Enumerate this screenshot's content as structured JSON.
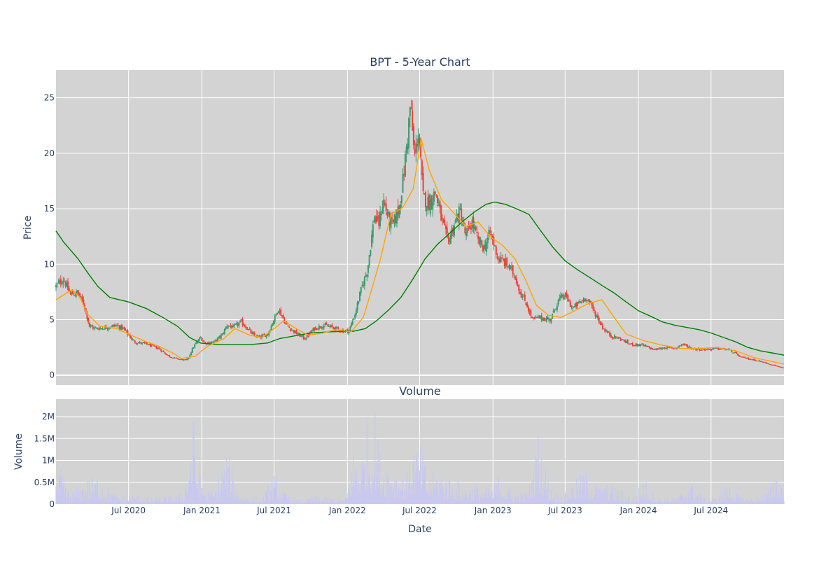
{
  "chart_data": [
    {
      "type": "candlestick",
      "title": "BPT - 5-Year Chart",
      "ylabel": "Price",
      "xlabel": "",
      "ylim": [
        -0.9,
        27.5
      ],
      "xlim": [
        "2020-01-01",
        "2024-12-31"
      ],
      "y_ticks": [
        0,
        5,
        10,
        15,
        20,
        25
      ],
      "grid": true,
      "legend": "none",
      "colors": {
        "up": "#3d9970",
        "down": "#ef4136",
        "ma_short": "#ffa500",
        "ma_long": "#008000",
        "background": "#d3d3d3"
      },
      "close_series": {
        "dates": [
          "2020-01-01",
          "2020-01-20",
          "2020-02-05",
          "2020-02-25",
          "2020-03-12",
          "2020-03-25",
          "2020-04-10",
          "2020-05-05",
          "2020-06-01",
          "2020-06-20",
          "2020-07-15",
          "2020-08-15",
          "2020-09-15",
          "2020-10-10",
          "2020-10-28",
          "2020-11-10",
          "2020-11-25",
          "2020-12-10",
          "2020-12-28",
          "2021-01-10",
          "2021-02-01",
          "2021-02-20",
          "2021-03-05",
          "2021-03-20",
          "2021-04-10",
          "2021-05-10",
          "2021-05-25",
          "2021-06-15",
          "2021-06-28",
          "2021-07-12",
          "2021-08-01",
          "2021-08-25",
          "2021-09-15",
          "2021-10-10",
          "2021-11-01",
          "2021-11-25",
          "2021-12-20",
          "2022-01-05",
          "2022-01-20",
          "2022-02-05",
          "2022-02-20",
          "2022-03-01",
          "2022-03-10",
          "2022-03-20",
          "2022-04-01",
          "2022-04-15",
          "2022-04-25",
          "2022-05-10",
          "2022-05-20",
          "2022-06-01",
          "2022-06-08",
          "2022-06-18",
          "2022-06-28",
          "2022-07-10",
          "2022-07-25",
          "2022-08-10",
          "2022-08-25",
          "2022-09-10",
          "2022-09-25",
          "2022-10-10",
          "2022-10-25",
          "2022-11-10",
          "2022-11-25",
          "2022-12-10",
          "2022-12-25",
          "2023-01-15",
          "2023-02-05",
          "2023-02-25",
          "2023-03-10",
          "2023-03-25",
          "2023-04-10",
          "2023-04-25",
          "2023-05-10",
          "2023-05-25",
          "2023-06-15",
          "2023-07-01",
          "2023-07-20",
          "2023-08-05",
          "2023-08-25",
          "2023-09-15",
          "2023-10-05",
          "2023-10-25",
          "2023-11-15",
          "2023-12-10",
          "2024-01-10",
          "2024-02-10",
          "2024-03-10",
          "2024-04-01",
          "2024-04-20",
          "2024-05-15",
          "2024-06-15",
          "2024-07-15",
          "2024-08-15",
          "2024-09-15",
          "2024-10-15",
          "2024-11-15",
          "2024-12-15",
          "2024-12-31"
        ],
        "close": [
          8.0,
          8.7,
          7.3,
          7.4,
          6.3,
          4.4,
          4.2,
          4.3,
          4.5,
          4.1,
          3.0,
          2.8,
          2.4,
          1.7,
          1.5,
          1.4,
          1.35,
          2.5,
          3.4,
          2.9,
          3.0,
          3.6,
          4.5,
          4.3,
          4.8,
          3.6,
          3.4,
          3.7,
          4.8,
          6.0,
          4.5,
          3.8,
          3.3,
          4.2,
          4.5,
          4.3,
          4.0,
          4.0,
          5.5,
          7.8,
          9.5,
          12.0,
          14.5,
          13.5,
          15.8,
          14.0,
          13.5,
          15.0,
          17.5,
          21.5,
          24.5,
          19.5,
          22.0,
          16.0,
          15.5,
          16.5,
          14.0,
          12.0,
          13.5,
          14.8,
          12.5,
          13.8,
          12.0,
          11.5,
          12.8,
          10.5,
          10.0,
          9.0,
          7.5,
          6.5,
          5.0,
          5.2,
          5.1,
          5.0,
          6.8,
          7.2,
          6.0,
          6.5,
          7.0,
          5.5,
          4.2,
          3.5,
          3.3,
          2.8,
          2.7,
          2.3,
          2.5,
          2.4,
          2.8,
          2.4,
          2.3,
          2.4,
          2.3,
          1.6,
          1.4,
          1.1,
          0.8,
          0.6
        ]
      },
      "ma_short": {
        "dates": [
          "2020-01-01",
          "2020-02-10",
          "2020-03-01",
          "2020-03-20",
          "2020-04-20",
          "2020-06-01",
          "2020-07-01",
          "2020-08-15",
          "2020-09-15",
          "2020-10-25",
          "2020-11-10",
          "2020-12-15",
          "2021-01-15",
          "2021-02-25",
          "2021-03-25",
          "2021-05-01",
          "2021-06-01",
          "2021-07-05",
          "2021-07-25",
          "2021-08-25",
          "2021-09-25",
          "2021-11-01",
          "2021-12-01",
          "2022-01-10",
          "2022-02-10",
          "2022-03-01",
          "2022-03-25",
          "2022-04-20",
          "2022-05-20",
          "2022-06-15",
          "2022-07-05",
          "2022-07-25",
          "2022-08-25",
          "2022-09-20",
          "2022-10-25",
          "2022-11-25",
          "2022-12-25",
          "2023-01-25",
          "2023-02-25",
          "2023-03-25",
          "2023-04-20",
          "2023-05-20",
          "2023-06-20",
          "2023-07-20",
          "2023-08-25",
          "2023-10-01",
          "2023-11-01",
          "2023-12-01",
          "2024-01-15",
          "2024-03-01",
          "2024-04-15",
          "2024-06-01",
          "2024-07-15",
          "2024-09-01",
          "2024-10-15",
          "2024-12-31"
        ],
        "values": [
          6.8,
          7.7,
          7.0,
          5.5,
          4.4,
          4.2,
          3.7,
          3.0,
          2.6,
          1.9,
          1.5,
          1.7,
          2.6,
          3.3,
          4.2,
          3.6,
          3.4,
          4.3,
          4.9,
          4.2,
          3.6,
          3.8,
          4.1,
          3.9,
          5.2,
          7.5,
          10.5,
          14.5,
          15.1,
          16.8,
          21.3,
          18.5,
          15.8,
          14.8,
          13.4,
          13.8,
          12.5,
          11.7,
          10.5,
          8.5,
          6.3,
          5.4,
          5.2,
          5.7,
          6.4,
          6.8,
          5.2,
          3.7,
          3.1,
          2.7,
          2.4,
          2.4,
          2.5,
          2.2,
          1.6,
          1.0
        ]
      },
      "ma_long": {
        "dates": [
          "2020-01-01",
          "2020-01-20",
          "2020-02-25",
          "2020-03-25",
          "2020-04-15",
          "2020-05-15",
          "2020-07-01",
          "2020-08-15",
          "2020-09-25",
          "2020-11-01",
          "2020-12-01",
          "2020-12-28",
          "2021-01-25",
          "2021-03-01",
          "2021-04-01",
          "2021-05-01",
          "2021-06-15",
          "2021-07-15",
          "2021-08-15",
          "2021-10-01",
          "2021-11-15",
          "2021-12-20",
          "2022-01-15",
          "2022-02-15",
          "2022-03-15",
          "2022-04-15",
          "2022-05-15",
          "2022-06-15",
          "2022-07-15",
          "2022-08-15",
          "2022-09-15",
          "2022-10-15",
          "2022-11-15",
          "2022-12-15",
          "2023-01-05",
          "2023-02-01",
          "2023-03-01",
          "2023-04-01",
          "2023-05-01",
          "2023-06-01",
          "2023-07-01",
          "2023-08-01",
          "2023-09-01",
          "2023-10-01",
          "2023-11-01",
          "2023-12-01",
          "2024-01-01",
          "2024-02-01",
          "2024-03-01",
          "2024-04-01",
          "2024-05-01",
          "2024-06-01",
          "2024-07-01",
          "2024-08-01",
          "2024-09-01",
          "2024-10-01",
          "2024-11-01",
          "2024-12-01",
          "2024-12-31"
        ],
        "values": [
          13.0,
          12.0,
          10.5,
          9.0,
          8.0,
          7.0,
          6.6,
          6.0,
          5.2,
          4.4,
          3.4,
          2.9,
          2.8,
          2.75,
          2.75,
          2.75,
          2.9,
          3.3,
          3.5,
          3.8,
          3.9,
          3.95,
          3.95,
          4.2,
          4.9,
          5.9,
          7.0,
          8.7,
          10.5,
          11.8,
          12.8,
          13.8,
          14.7,
          15.4,
          15.6,
          15.4,
          15.0,
          14.5,
          13.0,
          11.5,
          10.3,
          9.5,
          8.8,
          8.1,
          7.4,
          6.6,
          5.8,
          5.3,
          4.8,
          4.5,
          4.3,
          4.1,
          3.8,
          3.4,
          3.0,
          2.5,
          2.2,
          2.0,
          1.8
        ]
      }
    },
    {
      "type": "bar",
      "title": "Volume",
      "xlabel": "Date",
      "ylabel": "Volume",
      "ylim": [
        0,
        2400000
      ],
      "y_ticks": [
        0,
        500000,
        1000000,
        1500000,
        2000000
      ],
      "y_tick_labels": [
        "0",
        "0.5M",
        "1M",
        "1.5M",
        "2M"
      ],
      "x_ticks": [
        "2020-07-01",
        "2021-01-01",
        "2021-07-01",
        "2022-01-01",
        "2022-07-01",
        "2023-01-01",
        "2023-07-01",
        "2024-01-01",
        "2024-07-01"
      ],
      "x_tick_labels": [
        "Jul 2020",
        "Jan 2021",
        "Jul 2021",
        "Jan 2022",
        "Jul 2022",
        "Jan 2023",
        "Jul 2023",
        "Jan 2024",
        "Jul 2024"
      ],
      "grid": true,
      "colors": {
        "bar": "#c8c8f0",
        "background": "#d3d3d3"
      },
      "volume_envelope": {
        "dates": [
          "2020-01-01",
          "2020-01-10",
          "2020-02-01",
          "2020-03-01",
          "2020-03-20",
          "2020-04-20",
          "2020-06-01",
          "2020-07-15",
          "2020-09-01",
          "2020-10-15",
          "2020-11-15",
          "2020-11-28",
          "2020-12-10",
          "2020-12-22",
          "2021-01-10",
          "2021-02-01",
          "2021-02-25",
          "2021-03-10",
          "2021-04-01",
          "2021-05-01",
          "2021-06-01",
          "2021-07-01",
          "2021-08-01",
          "2021-09-01",
          "2021-10-15",
          "2021-12-01",
          "2021-12-28",
          "2022-01-20",
          "2022-02-05",
          "2022-02-20",
          "2022-03-01",
          "2022-03-10",
          "2022-03-25",
          "2022-04-15",
          "2022-05-10",
          "2022-06-01",
          "2022-06-15",
          "2022-07-05",
          "2022-07-25",
          "2022-08-20",
          "2022-09-20",
          "2022-10-25",
          "2022-11-25",
          "2022-12-25",
          "2023-01-15",
          "2023-02-20",
          "2023-03-20",
          "2023-04-05",
          "2023-04-25",
          "2023-05-25",
          "2023-06-25",
          "2023-07-20",
          "2023-08-20",
          "2023-09-25",
          "2023-10-25",
          "2023-11-25",
          "2023-12-20",
          "2024-01-15",
          "2024-02-15",
          "2024-03-15",
          "2024-04-10",
          "2024-05-10",
          "2024-06-15",
          "2024-07-15",
          "2024-08-15",
          "2024-09-15",
          "2024-10-20",
          "2024-11-25",
          "2024-12-10",
          "2024-12-31"
        ],
        "values": [
          700000,
          950000,
          300000,
          400000,
          600000,
          650000,
          200000,
          250000,
          150000,
          200000,
          250000,
          1100000,
          2200000,
          900000,
          400000,
          300000,
          1100000,
          1200000,
          400000,
          200000,
          150000,
          700000,
          250000,
          100000,
          200000,
          150000,
          150000,
          1550000,
          1100000,
          2100000,
          1300000,
          2300000,
          1150000,
          1000000,
          700000,
          800000,
          1450000,
          1350000,
          650000,
          850000,
          600000,
          450000,
          450000,
          350000,
          700000,
          300000,
          250000,
          500000,
          1700000,
          400000,
          200000,
          500000,
          800000,
          400000,
          500000,
          300000,
          200000,
          600000,
          200000,
          150000,
          200000,
          550000,
          150000,
          150000,
          500000,
          150000,
          150000,
          350000,
          900000,
          500000
        ]
      }
    }
  ]
}
